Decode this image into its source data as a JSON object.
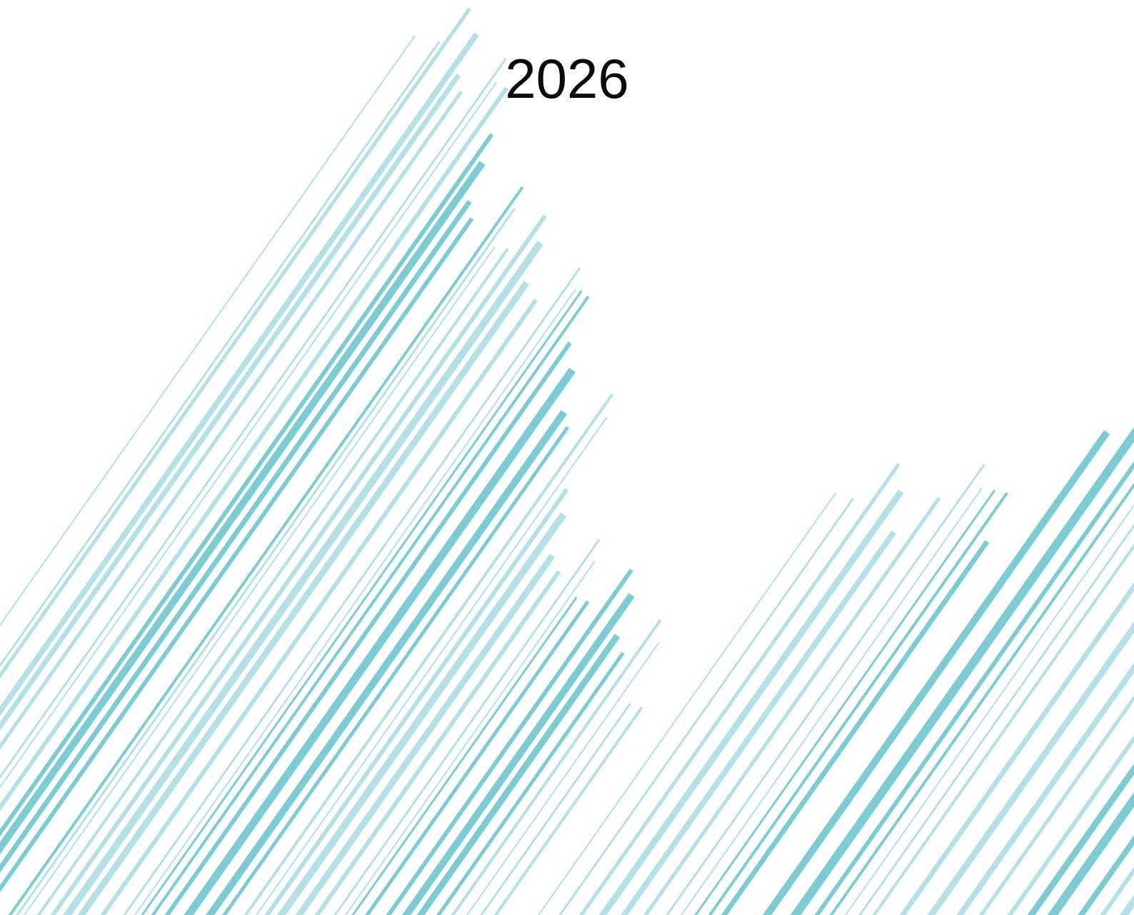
{
  "cover": {
    "title": "2026"
  },
  "decoration": {
    "pattern": "diagonal-stripes",
    "colors": {
      "teal_light": "#b4e1e6",
      "teal_dark": "#7ccdd3",
      "background": "#ffffff"
    }
  }
}
